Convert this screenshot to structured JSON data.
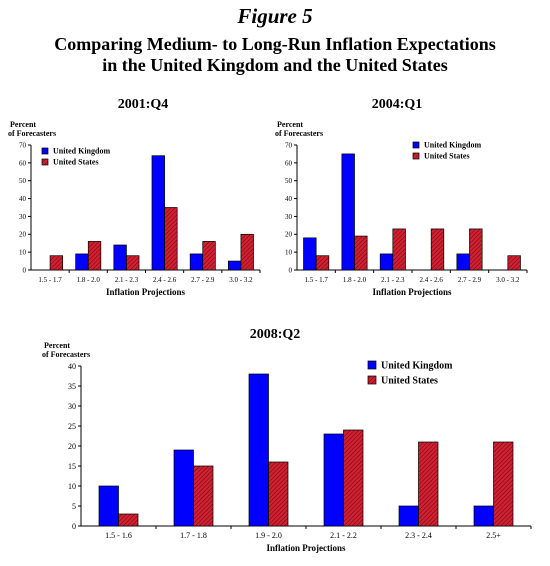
{
  "figure": {
    "label": "Figure 5",
    "title_lines": [
      "Comparing Medium- to Long-Run Inflation Expectations",
      "in the United Kingdom and the United States"
    ]
  },
  "colors": {
    "uk": "#0000ff",
    "us": "#cc2233",
    "us_stripe": "#7a0000"
  },
  "chart_data": [
    {
      "type": "bar",
      "title": "2001:Q4",
      "ylabel": "Percent\nof Forecasters",
      "xlabel": "Inflation Projections",
      "ylim": [
        0,
        70
      ],
      "yticks": [
        0,
        10,
        20,
        30,
        40,
        50,
        60,
        70
      ],
      "grid": false,
      "legend": "top-left",
      "categories": [
        "1.5 - 1.7",
        "1.8 - 2.0",
        "2.1 - 2.3",
        "2.4 - 2.6",
        "2.7 - 2.9",
        "3.0 - 3.2"
      ],
      "series": [
        {
          "name": "United Kingdom",
          "values": [
            0,
            9,
            14,
            64,
            9,
            5
          ]
        },
        {
          "name": "United States",
          "values": [
            8,
            16,
            8,
            35,
            16,
            20
          ]
        }
      ]
    },
    {
      "type": "bar",
      "title": "2004:Q1",
      "ylabel": "Percent\nof Forecasters",
      "xlabel": "Inflation Projections",
      "ylim": [
        0,
        70
      ],
      "yticks": [
        0,
        10,
        20,
        30,
        40,
        50,
        60,
        70
      ],
      "grid": false,
      "legend": "top-right",
      "categories": [
        "1.5 - 1.7",
        "1.8 - 2.0",
        "2.1 - 2.3",
        "2.4 - 2.6",
        "2.7 - 2.9",
        "3.0 - 3.2"
      ],
      "series": [
        {
          "name": "United Kingdom",
          "values": [
            18,
            65,
            9,
            0,
            9,
            0
          ]
        },
        {
          "name": "United States",
          "values": [
            8,
            19,
            23,
            23,
            23,
            8
          ]
        }
      ]
    },
    {
      "type": "bar",
      "title": "2008:Q2",
      "ylabel": "Percent\nof Forecasters",
      "xlabel": "Inflation Projections",
      "ylim": [
        0,
        40
      ],
      "yticks": [
        0,
        5,
        10,
        15,
        20,
        25,
        30,
        35,
        40
      ],
      "grid": false,
      "legend": "top-right",
      "categories": [
        "1.5 - 1.6",
        "1.7 - 1.8",
        "1.9 - 2.0",
        "2.1 - 2.2",
        "2.3 - 2.4",
        "2.5+"
      ],
      "series": [
        {
          "name": "United Kingdom",
          "values": [
            10,
            19,
            38,
            23,
            5,
            5
          ]
        },
        {
          "name": "United States",
          "values": [
            3,
            15,
            16,
            24,
            21,
            21
          ]
        }
      ]
    }
  ]
}
